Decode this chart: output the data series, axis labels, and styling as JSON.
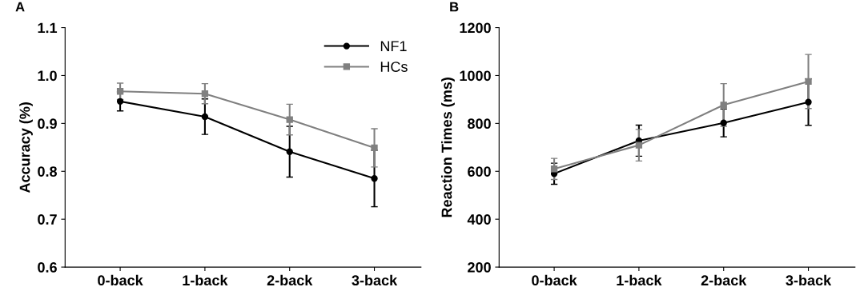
{
  "chart_data": [
    {
      "type": "line",
      "title": "A",
      "ylabel": "Accuracy (%)",
      "categories": [
        "0-back",
        "1-back",
        "2-back",
        "3-back"
      ],
      "ylim": [
        0.6,
        1.1
      ],
      "yticks": [
        0.6,
        0.7,
        0.8,
        0.9,
        {
          "value": 1,
          "label": "1.0"
        },
        1.1
      ],
      "grid": false,
      "legend": "top right",
      "series": [
        {
          "name": "NF1",
          "color": "#000000",
          "marker": "circle",
          "values": [
            0.946,
            0.914,
            0.841,
            0.785
          ],
          "errors": [
            0.02,
            0.037,
            0.053,
            0.059
          ]
        },
        {
          "name": "HCs",
          "color": "#808080",
          "marker": "square",
          "values": [
            0.967,
            0.962,
            0.908,
            0.849
          ],
          "errors": [
            0.017,
            0.021,
            0.032,
            0.04
          ]
        }
      ]
    },
    {
      "type": "line",
      "title": "B",
      "ylabel": "Reaction Times (ms)",
      "categories": [
        "0-back",
        "1-back",
        "2-back",
        "3-back"
      ],
      "ylim": [
        200,
        1200
      ],
      "yticks": [
        200,
        400,
        600,
        800,
        1000,
        1200
      ],
      "grid": false,
      "legend": false,
      "series": [
        {
          "color": "#000000",
          "marker": "circle",
          "values": [
            590,
            728,
            802,
            889
          ],
          "errors": [
            44,
            65,
            58,
            97
          ]
        },
        {
          "color": "#808080",
          "marker": "square",
          "values": [
            610,
            709,
            877,
            975
          ],
          "errors": [
            44,
            66,
            89,
            113
          ]
        }
      ]
    }
  ]
}
